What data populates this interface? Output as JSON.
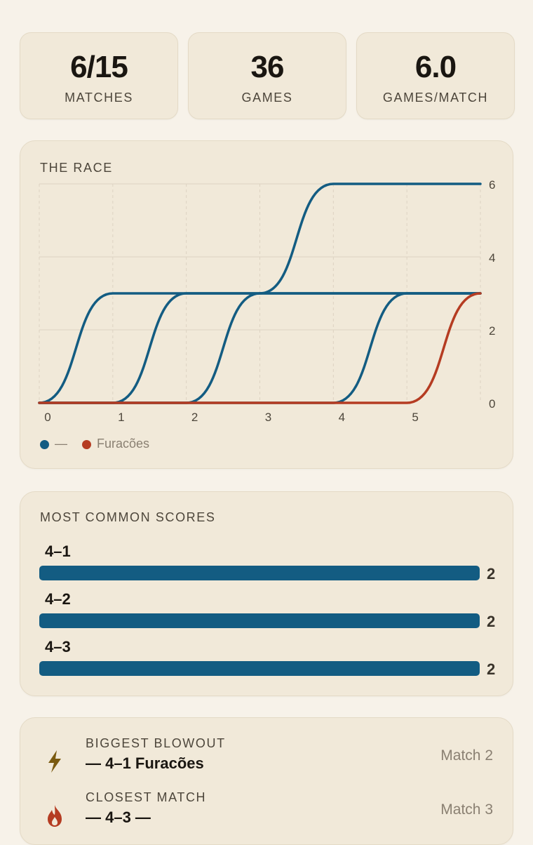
{
  "stats": [
    {
      "value": "6/15",
      "label": "MATCHES"
    },
    {
      "value": "36",
      "label": "GAMES"
    },
    {
      "value": "6.0",
      "label": "GAMES/MATCH"
    }
  ],
  "race": {
    "title": "THE RACE",
    "legend": [
      {
        "label": "—",
        "color": "#135c82"
      },
      {
        "label": "Furacões",
        "color": "#b53c22"
      }
    ]
  },
  "chart_data": {
    "type": "line",
    "x": [
      0,
      1,
      2,
      3,
      4,
      5,
      6
    ],
    "x_tick_labels": [
      "0",
      "1",
      "2",
      "3",
      "4",
      "5"
    ],
    "y_tick_labels": [
      "0",
      "2",
      "4",
      "6"
    ],
    "ylim": [
      0,
      6
    ],
    "xlim": [
      0,
      6
    ],
    "grid": true,
    "legend_position": "bottom-left",
    "series": [
      {
        "name": "—",
        "color": "#135c82",
        "values": [
          0,
          3,
          3,
          3,
          3,
          3,
          3
        ]
      },
      {
        "name": "—",
        "color": "#135c82",
        "values": [
          0,
          0,
          3,
          3,
          3,
          3,
          3
        ]
      },
      {
        "name": "—",
        "color": "#135c82",
        "values": [
          0,
          0,
          0,
          3,
          6,
          6,
          6
        ]
      },
      {
        "name": "—",
        "color": "#135c82",
        "values": [
          0,
          0,
          0,
          0,
          0,
          3,
          3
        ]
      },
      {
        "name": "Furacões",
        "color": "#b53c22",
        "values": [
          0,
          0,
          0,
          0,
          0,
          0,
          3
        ]
      }
    ]
  },
  "scores": {
    "title": "MOST COMMON SCORES",
    "max": 2,
    "color": "#135c82",
    "items": [
      {
        "label": "4–1",
        "count": "2",
        "value": 2
      },
      {
        "label": "4–2",
        "count": "2",
        "value": 2
      },
      {
        "label": "4–3",
        "count": "2",
        "value": 2
      }
    ]
  },
  "records": [
    {
      "icon": "lightning-icon",
      "title": "BIGGEST BLOWOUT",
      "desc": "— 4–1 Furacões",
      "match": "Match 2",
      "color": "#7a5a10"
    },
    {
      "icon": "flame-icon",
      "title": "CLOSEST MATCH",
      "desc": "— 4–3 —",
      "match": "Match 3",
      "color": "#b53c22"
    }
  ]
}
